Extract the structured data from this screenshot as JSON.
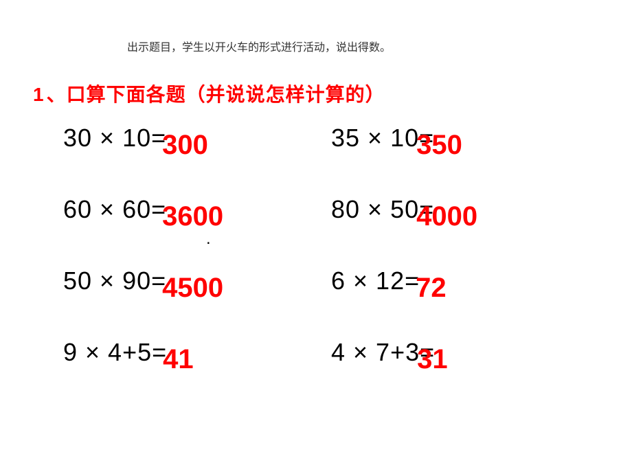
{
  "top_note": "出示题目，学生以开火车的形式进行活动，说出得数。",
  "title": {
    "num": "1",
    "sep": "、",
    "text": "口算下面各题（并说说怎样计算的）"
  },
  "colors": {
    "red": "#ff0000",
    "black": "#000000",
    "bg": "#ffffff"
  },
  "problems": [
    [
      {
        "expr": "30 × 10=",
        "ans": "300",
        "shift": false
      },
      {
        "expr": "35 × 10=",
        "ans": "350",
        "shift": true
      }
    ],
    [
      {
        "expr": "60 × 60=",
        "ans": "3600",
        "shift": false
      },
      {
        "expr": "80 × 50=",
        "ans": "4000",
        "shift": true
      }
    ],
    [
      {
        "expr": "50 × 90=",
        "ans": "4500",
        "shift": false
      },
      {
        "expr": "6 × 12=",
        "ans": "72",
        "shift": false
      }
    ],
    [
      {
        "expr": "9 × 4+5=",
        "ans": "41",
        "shift": false
      },
      {
        "expr": "4 × 7+3=",
        "ans": "31",
        "shift": true
      }
    ]
  ],
  "dot": "."
}
